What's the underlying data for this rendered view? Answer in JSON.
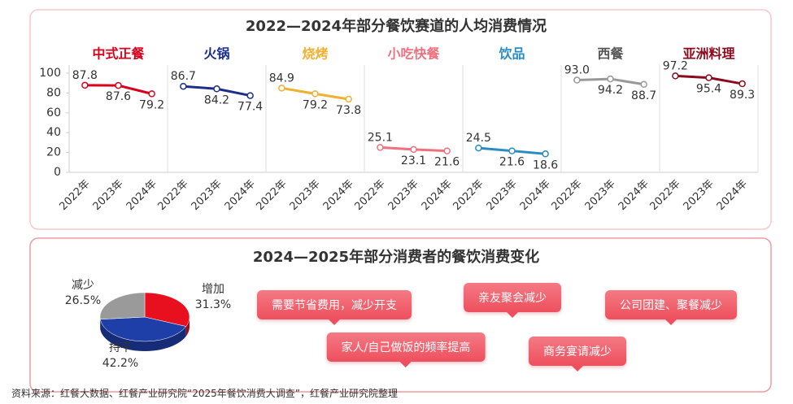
{
  "chart_data": [
    {
      "type": "line",
      "title": "2022—2024年部分餐饮赛道的人均消费情况",
      "categories": [
        "2022年",
        "2023年",
        "2024年"
      ],
      "ylim": [
        0,
        100
      ],
      "yticks": [
        0,
        20,
        40,
        60,
        80,
        100
      ],
      "series": [
        {
          "name": "中式正餐",
          "color": "#d7001b",
          "values": [
            87.8,
            87.6,
            79.2
          ]
        },
        {
          "name": "火锅",
          "color": "#1a2f8c",
          "values": [
            86.7,
            84.2,
            77.4
          ]
        },
        {
          "name": "烧烤",
          "color": "#f0b030",
          "values": [
            84.9,
            79.2,
            73.8
          ]
        },
        {
          "name": "小吃快餐",
          "color": "#f07080",
          "values": [
            25.1,
            23.1,
            21.6
          ]
        },
        {
          "name": "饮品",
          "color": "#2b8cc4",
          "values": [
            24.5,
            21.6,
            18.6
          ]
        },
        {
          "name": "西餐",
          "color": "#555555",
          "line_color": "#999999",
          "values": [
            93.0,
            94.2,
            88.7
          ],
          "value_labels": [
            "93.0",
            "94.2",
            "88.7"
          ]
        },
        {
          "name": "亚洲料理",
          "color": "#8b0a1e",
          "values": [
            97.2,
            95.4,
            89.3
          ]
        }
      ]
    },
    {
      "type": "pie",
      "title": "2024—2025年部分消费者的餐饮消费变化",
      "categories": [
        "增加",
        "持平",
        "减少"
      ],
      "values": [
        31.3,
        42.2,
        26.5
      ],
      "value_labels": [
        "31.3%",
        "42.2%",
        "26.5%"
      ],
      "colors": [
        "#e8101e",
        "#1f3fa8",
        "#9a9a9a"
      ],
      "annotations": [
        "需要节省费用，减少开支",
        "亲友聚会减少",
        "公司团建、聚餐减少",
        "家人/自己做饭的频率提高",
        "商务宴请减少"
      ]
    }
  ],
  "source": "资料来源：红餐大数据、红餐产业研究院“2025年餐饮消费大调查”，红餐产业研究院整理"
}
